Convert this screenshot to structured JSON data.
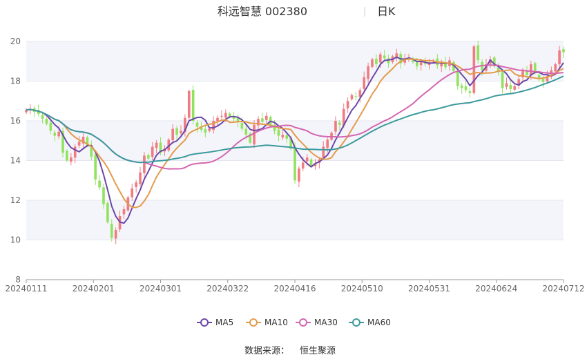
{
  "header": {
    "title": "科远智慧 002380",
    "period": "日K"
  },
  "source": {
    "label": "数据来源：",
    "value": "恒生聚源"
  },
  "colors": {
    "up": "#f07c82",
    "down": "#91e35f",
    "ma5": "#6b47a8",
    "ma10": "#e39a4b",
    "ma30": "#d465b0",
    "ma60": "#3a9a9d",
    "band": "#f4f5fa"
  },
  "chart_data": {
    "type": "candlestick",
    "x_ticks": [
      "20240111",
      "20240201",
      "20240301",
      "20240322",
      "20240416",
      "20240510",
      "20240531",
      "20240624",
      "20240712"
    ],
    "ylim": [
      8,
      20
    ],
    "y_ticks": [
      8,
      10,
      12,
      14,
      16,
      18,
      20
    ],
    "legend": [
      "MA5",
      "MA10",
      "MA30",
      "MA60"
    ],
    "legend_position": "bottom",
    "closes": [
      16.55,
      16.6,
      16.45,
      16.35,
      16.1,
      15.85,
      15.5,
      15.25,
      15.45,
      14.4,
      14.0,
      14.15,
      14.7,
      14.95,
      15.2,
      14.75,
      14.2,
      13.05,
      12.65,
      11.8,
      10.9,
      10.1,
      10.5,
      11.2,
      11.55,
      12.15,
      12.6,
      12.9,
      13.4,
      14.25,
      14.1,
      14.7,
      14.9,
      14.4,
      14.6,
      15.05,
      15.6,
      15.3,
      15.5,
      16.15,
      17.5,
      16.0,
      15.7,
      15.55,
      15.4,
      15.6,
      16.0,
      16.15,
      16.25,
      16.4,
      16.2,
      16.1,
      15.95,
      15.6,
      15.3,
      14.9,
      15.8,
      16.1,
      15.95,
      16.25,
      15.8,
      15.5,
      15.25,
      15.3,
      15.1,
      14.6,
      13.0,
      13.6,
      13.9,
      14.15,
      13.75,
      13.85,
      14.05,
      14.7,
      15.05,
      15.4,
      16.0,
      15.8,
      16.6,
      17.0,
      17.3,
      17.2,
      17.55,
      18.2,
      18.75,
      19.1,
      18.85,
      19.35,
      19.15,
      18.9,
      19.25,
      19.4,
      18.9,
      19.1,
      19.2,
      18.95,
      18.75,
      19.0,
      18.85,
      18.95,
      19.05,
      18.8,
      18.95,
      18.7,
      19.05,
      18.5,
      17.75,
      17.65,
      17.55,
      17.4,
      19.75,
      19.05,
      18.55,
      18.85,
      19.1,
      18.75,
      18.45,
      17.65,
      17.9,
      17.6,
      17.75,
      18.1,
      18.55,
      18.3,
      18.85,
      18.4,
      18.15,
      17.95,
      18.25,
      18.55,
      18.85,
      19.55,
      19.45
    ]
  }
}
